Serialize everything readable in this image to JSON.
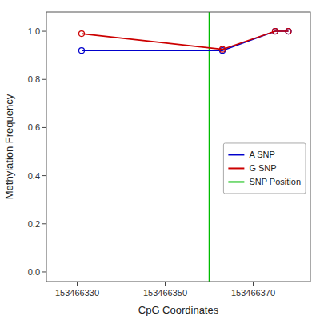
{
  "chart_data": {
    "type": "line",
    "xlabel": "CpG Coordinates",
    "ylabel": "Methylation Frequency",
    "x": [
      153466331,
      153466363,
      153466375,
      153466378
    ],
    "series": [
      {
        "name": "A SNP",
        "color": "#0000cc",
        "values": [
          0.92,
          0.92,
          1.0,
          1.0
        ]
      },
      {
        "name": "G SNP",
        "color": "#cc0000",
        "values": [
          0.99,
          0.925,
          1.0,
          1.0
        ]
      }
    ],
    "vlines": [
      {
        "name": "SNP Position",
        "x": 153466360,
        "color": "#00bb00"
      }
    ],
    "marker": "circle",
    "xlim": [
      153466323,
      153466383
    ],
    "ylim": [
      -0.04,
      1.08
    ],
    "xticks": [
      153466330,
      153466350,
      153466370
    ],
    "yticks": [
      {
        "value": 0.0,
        "label": "0.0"
      },
      {
        "value": 0.2,
        "label": "0.2"
      },
      {
        "value": 0.4,
        "label": "0.4"
      },
      {
        "value": 0.6,
        "label": "0.6"
      },
      {
        "value": 0.8,
        "label": "0.8"
      },
      {
        "value": 1.0,
        "label": "1.0"
      }
    ],
    "grid": false,
    "legend": "right"
  }
}
